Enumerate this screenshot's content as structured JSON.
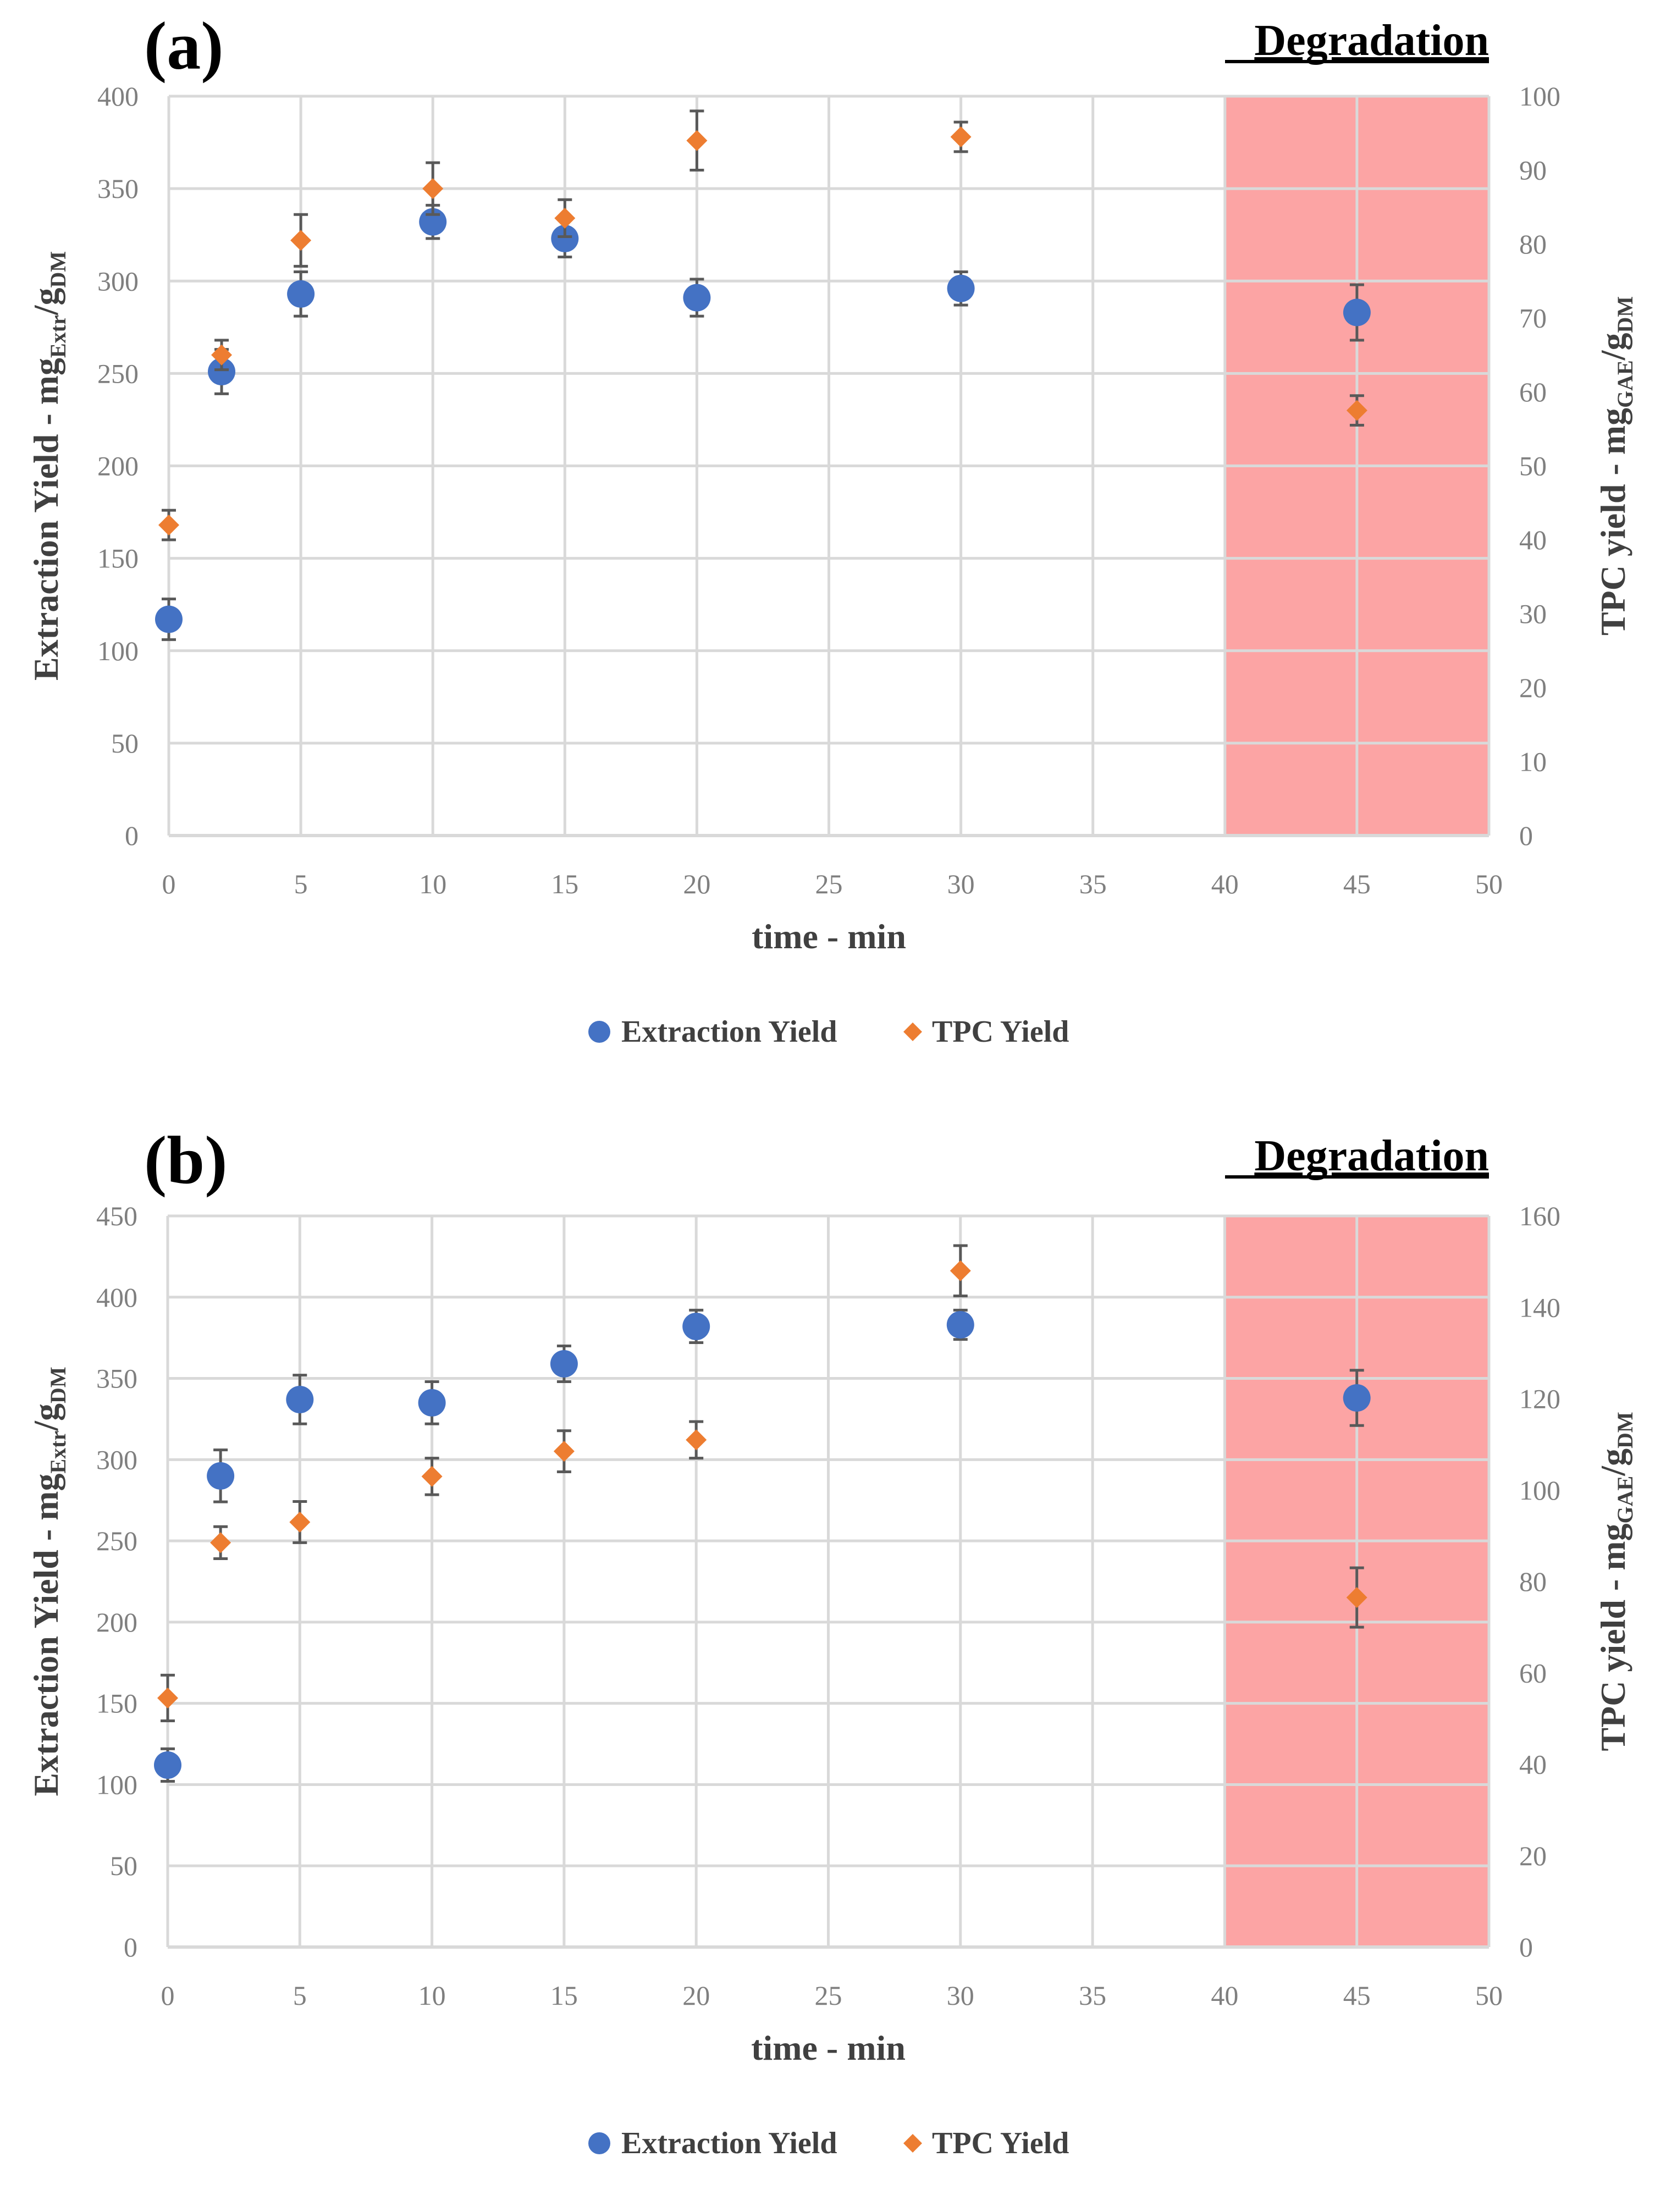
{
  "chart_data": [
    {
      "panel_label": "(a)",
      "type": "scatter",
      "region_label": "Degradation",
      "region_x": [
        40,
        50
      ],
      "xlabel": "time - min",
      "ylabel_left": {
        "main": "Extraction Yield - mg",
        "sub1": "Extr",
        "mid": "/g",
        "sub2": "DM"
      },
      "ylabel_right": {
        "main": "TPC yield - mg",
        "sub1": "GAE",
        "mid": "/g",
        "sub2": "DM"
      },
      "xlim": [
        0,
        50
      ],
      "xticks": [
        0,
        5,
        10,
        15,
        20,
        25,
        30,
        35,
        40,
        45,
        50
      ],
      "ylim_left": [
        0,
        400
      ],
      "yticks_left": [
        0,
        50,
        100,
        150,
        200,
        250,
        300,
        350,
        400
      ],
      "ylim_right": [
        0,
        100
      ],
      "yticks_right": [
        0,
        10,
        20,
        30,
        40,
        50,
        60,
        70,
        80,
        90,
        100
      ],
      "legend_position": "bottom-center",
      "series": [
        {
          "name": "Extraction Yield",
          "axis": "left",
          "marker": "circle",
          "color": "#4472c4",
          "x": [
            0,
            2,
            5,
            10,
            15,
            20,
            30,
            45
          ],
          "values": [
            117,
            251,
            293,
            332,
            323,
            291,
            296,
            283
          ],
          "errors": [
            11,
            12,
            12,
            9,
            10,
            10,
            9,
            15
          ]
        },
        {
          "name": "TPC Yield",
          "axis": "right",
          "marker": "diamond",
          "color": "#ed7d31",
          "x": [
            0,
            2,
            5,
            10,
            15,
            20,
            30,
            45
          ],
          "values": [
            42,
            65,
            80.5,
            87.5,
            83.5,
            94,
            94.5,
            57.5
          ],
          "errors": [
            2,
            2,
            3.5,
            3.5,
            2.5,
            4,
            2,
            2
          ]
        }
      ]
    },
    {
      "panel_label": "(b)",
      "type": "scatter",
      "region_label": "Degradation",
      "region_x": [
        40,
        50
      ],
      "xlabel": "time - min",
      "ylabel_left": {
        "main": "Extraction Yield - mg",
        "sub1": "Extr",
        "mid": "/g",
        "sub2": "DM"
      },
      "ylabel_right": {
        "main": "TPC yield - mg",
        "sub1": "GAE",
        "mid": "/g",
        "sub2": "DM"
      },
      "xlim": [
        0,
        50
      ],
      "xticks": [
        0,
        5,
        10,
        15,
        20,
        25,
        30,
        35,
        40,
        45,
        50
      ],
      "ylim_left": [
        0,
        450
      ],
      "yticks_left": [
        0,
        50,
        100,
        150,
        200,
        250,
        300,
        350,
        400,
        450
      ],
      "ylim_right": [
        0,
        160
      ],
      "yticks_right": [
        0,
        20,
        40,
        60,
        80,
        100,
        120,
        140,
        160
      ],
      "legend_position": "bottom-center",
      "series": [
        {
          "name": "Extraction Yield",
          "axis": "left",
          "marker": "circle",
          "color": "#4472c4",
          "x": [
            0,
            2,
            5,
            10,
            15,
            20,
            30,
            45
          ],
          "values": [
            112,
            290,
            337,
            335,
            359,
            382,
            383,
            338
          ],
          "errors": [
            10,
            16,
            15,
            13,
            11,
            10,
            9,
            17
          ]
        },
        {
          "name": "TPC Yield",
          "axis": "right",
          "marker": "diamond",
          "color": "#ed7d31",
          "x": [
            0,
            2,
            5,
            10,
            15,
            20,
            30,
            45
          ],
          "values": [
            54.5,
            88.5,
            93,
            103,
            108.5,
            111,
            148,
            76.5
          ],
          "errors": [
            5,
            3.5,
            4.5,
            4,
            4.5,
            4,
            5.5,
            6.5
          ]
        }
      ]
    }
  ]
}
